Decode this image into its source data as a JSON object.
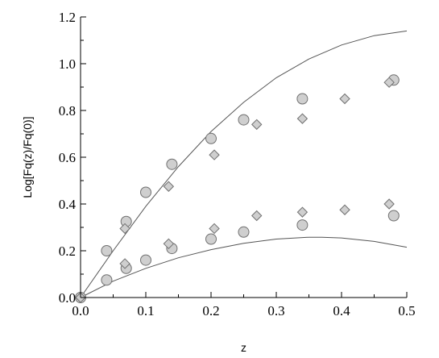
{
  "chart_data": {
    "type": "scatter",
    "xlabel": "z",
    "ylabel": "Log[Fq(z)/Fq(0)]",
    "xlim": [
      0.0,
      0.5
    ],
    "ylim": [
      0.0,
      1.2
    ],
    "x_ticks": [
      "0.0",
      "0.1",
      "0.2",
      "0.3",
      "0.4",
      "0.5"
    ],
    "y_ticks": [
      "0.0",
      "0.2",
      "0.4",
      "0.6",
      "0.8",
      "1.0",
      "1.2"
    ],
    "series": [
      {
        "marker": "circle",
        "color": "#cfcfcf",
        "points": [
          [
            0.0,
            0.0
          ],
          [
            0.04,
            0.2
          ],
          [
            0.07,
            0.325
          ],
          [
            0.1,
            0.45
          ],
          [
            0.14,
            0.57
          ],
          [
            0.2,
            0.68
          ],
          [
            0.25,
            0.76
          ],
          [
            0.34,
            0.85
          ],
          [
            0.48,
            0.93
          ],
          [
            0.04,
            0.075
          ],
          [
            0.07,
            0.125
          ],
          [
            0.1,
            0.16
          ],
          [
            0.14,
            0.21
          ],
          [
            0.2,
            0.25
          ],
          [
            0.25,
            0.28
          ],
          [
            0.34,
            0.31
          ],
          [
            0.48,
            0.35
          ]
        ]
      },
      {
        "marker": "diamond",
        "color": "#cfcfcf",
        "points": [
          [
            0.0,
            0.0
          ],
          [
            0.068,
            0.295
          ],
          [
            0.135,
            0.475
          ],
          [
            0.205,
            0.61
          ],
          [
            0.27,
            0.74
          ],
          [
            0.34,
            0.765
          ],
          [
            0.405,
            0.85
          ],
          [
            0.473,
            0.92
          ],
          [
            0.068,
            0.145
          ],
          [
            0.135,
            0.23
          ],
          [
            0.205,
            0.295
          ],
          [
            0.27,
            0.35
          ],
          [
            0.34,
            0.365
          ],
          [
            0.405,
            0.375
          ],
          [
            0.473,
            0.4
          ]
        ]
      }
    ],
    "curves": [
      {
        "color": "#555555",
        "points": [
          [
            0.0,
            0.0
          ],
          [
            0.05,
            0.2
          ],
          [
            0.1,
            0.39
          ],
          [
            0.15,
            0.56
          ],
          [
            0.2,
            0.71
          ],
          [
            0.25,
            0.835
          ],
          [
            0.3,
            0.94
          ],
          [
            0.35,
            1.02
          ],
          [
            0.4,
            1.08
          ],
          [
            0.45,
            1.12
          ],
          [
            0.5,
            1.14
          ]
        ]
      },
      {
        "color": "#555555",
        "points": [
          [
            0.0,
            0.0
          ],
          [
            0.05,
            0.07
          ],
          [
            0.1,
            0.125
          ],
          [
            0.15,
            0.17
          ],
          [
            0.2,
            0.205
          ],
          [
            0.25,
            0.232
          ],
          [
            0.3,
            0.25
          ],
          [
            0.35,
            0.258
          ],
          [
            0.37,
            0.258
          ],
          [
            0.4,
            0.255
          ],
          [
            0.45,
            0.24
          ],
          [
            0.5,
            0.215
          ]
        ]
      }
    ]
  }
}
